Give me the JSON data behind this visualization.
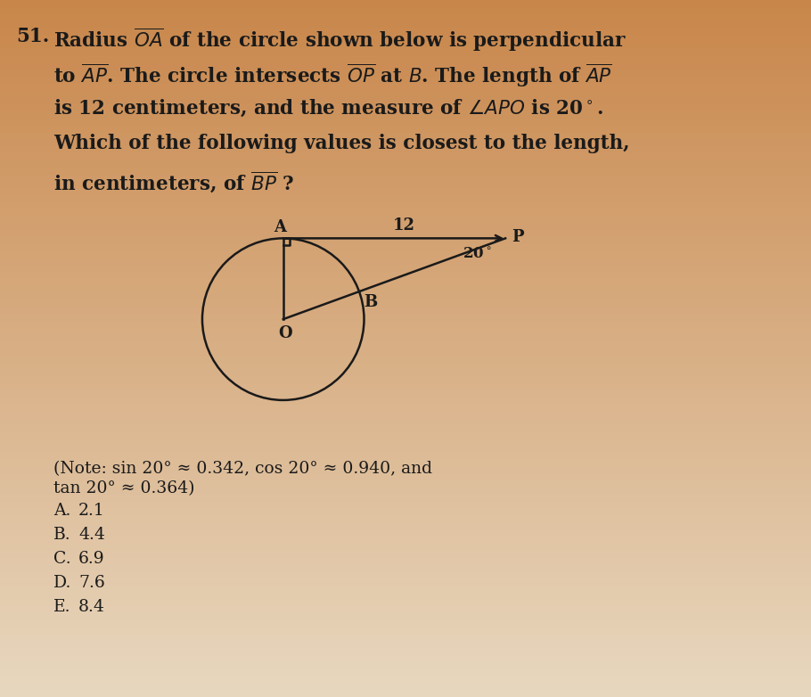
{
  "bg_top": "#c8864a",
  "bg_bottom": "#e8d8c0",
  "question_number": "51.",
  "text_color": "#1a1a1a",
  "line1": "Radius $\\overline{OA}$ of the circle shown below is perpendicular",
  "line2": "to $\\overline{AP}$. The circle intersects $\\overline{OP}$ at $B$. The length of $\\overline{AP}$",
  "line3": "is 12 centimeters, and the measure of $\\angle APO$ is 20$^\\circ$.",
  "line4": "Which of the following values is closest to the length,",
  "line5": "in centimeters, of $\\overline{BP}$ ?",
  "note_line1": "(Note: sin 20° ≈ 0.342, cos 20° ≈ 0.940, and",
  "note_line2": "tan 20° ≈ 0.364)",
  "choices": [
    [
      "A.",
      "2.1"
    ],
    [
      "B.",
      "4.4"
    ],
    [
      "C.",
      "6.9"
    ],
    [
      "D.",
      "7.6"
    ],
    [
      "E.",
      "8.4"
    ]
  ],
  "font_size_q": 15.5,
  "font_size_note": 13.5,
  "font_size_choices": 13.5,
  "font_size_diag": 13,
  "line_color": "#1a1a1a",
  "AP": 12.0,
  "tan20": 0.364,
  "cos20": 0.94,
  "sin20": 0.342
}
